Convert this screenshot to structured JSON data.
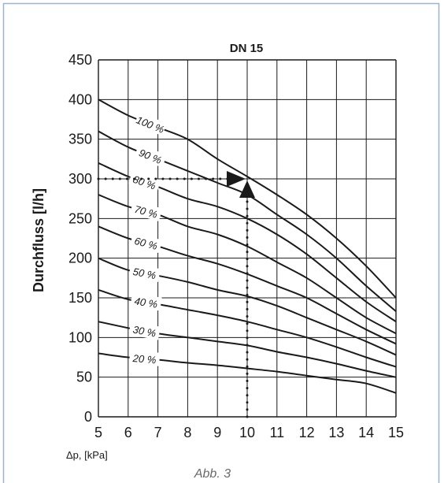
{
  "figure": {
    "caption": "Abb. 3",
    "frame_color": "#9fb3cf"
  },
  "chart_data": {
    "type": "line",
    "title": "DN 15",
    "xlabel": "Δp, [kPa]",
    "ylabel": "Durchfluss [l/h]",
    "xlim": [
      5,
      15
    ],
    "ylim": [
      0,
      450
    ],
    "xticks": [
      5,
      6,
      7,
      8,
      9,
      10,
      11,
      12,
      13,
      14,
      15
    ],
    "yticks": [
      0,
      50,
      100,
      150,
      200,
      250,
      300,
      350,
      400,
      450
    ],
    "grid": true,
    "legend": "inline labels",
    "line_color": "#1a1a1a",
    "series": [
      {
        "name": "100 %",
        "x": [
          5,
          6,
          7,
          8,
          9,
          10,
          11,
          12,
          13,
          14,
          15
        ],
        "y": [
          400,
          380,
          365,
          350,
          325,
          303,
          280,
          255,
          225,
          190,
          150
        ]
      },
      {
        "name": "90 %",
        "x": [
          5,
          6,
          7,
          8,
          9,
          10,
          11,
          12,
          13,
          14,
          15
        ],
        "y": [
          360,
          340,
          325,
          310,
          295,
          280,
          255,
          230,
          200,
          165,
          133
        ]
      },
      {
        "name": "80 %",
        "x": [
          5,
          6,
          7,
          8,
          9,
          10,
          11,
          12,
          13,
          14,
          15
        ],
        "y": [
          320,
          303,
          290,
          275,
          265,
          250,
          230,
          205,
          175,
          145,
          120
        ]
      },
      {
        "name": "70 %",
        "x": [
          5,
          6,
          7,
          8,
          9,
          10,
          11,
          12,
          13,
          14,
          15
        ],
        "y": [
          280,
          265,
          255,
          240,
          230,
          215,
          195,
          175,
          150,
          125,
          105
        ]
      },
      {
        "name": "60 %",
        "x": [
          5,
          6,
          7,
          8,
          9,
          10,
          11,
          12,
          13,
          14,
          15
        ],
        "y": [
          240,
          225,
          215,
          203,
          193,
          180,
          165,
          150,
          130,
          110,
          92
        ]
      },
      {
        "name": "50 %",
        "x": [
          5,
          6,
          7,
          8,
          9,
          10,
          11,
          12,
          13,
          14,
          15
        ],
        "y": [
          200,
          185,
          178,
          170,
          160,
          152,
          140,
          125,
          110,
          95,
          78
        ]
      },
      {
        "name": "40 %",
        "x": [
          5,
          6,
          7,
          8,
          9,
          10,
          11,
          12,
          13,
          14,
          15
        ],
        "y": [
          160,
          148,
          142,
          135,
          128,
          120,
          110,
          100,
          88,
          75,
          63
        ]
      },
      {
        "name": "30 %",
        "x": [
          5,
          6,
          7,
          8,
          9,
          10,
          11,
          12,
          13,
          14,
          15
        ],
        "y": [
          120,
          112,
          105,
          100,
          95,
          90,
          82,
          75,
          67,
          58,
          50
        ]
      },
      {
        "name": "20 %",
        "x": [
          5,
          6,
          7,
          8,
          9,
          10,
          11,
          12,
          13,
          14,
          15
        ],
        "y": [
          80,
          75,
          72,
          68,
          65,
          61,
          57,
          52,
          47,
          42,
          30
        ]
      }
    ],
    "label_x": [
      6.75,
      6.75,
      6.55,
      6.6,
      6.6,
      6.55,
      6.6,
      6.55,
      6.55
    ],
    "annotation": {
      "type": "reading-guide",
      "point": {
        "x": 10,
        "y": 300
      },
      "style": "dotted lines with arrowheads"
    }
  }
}
